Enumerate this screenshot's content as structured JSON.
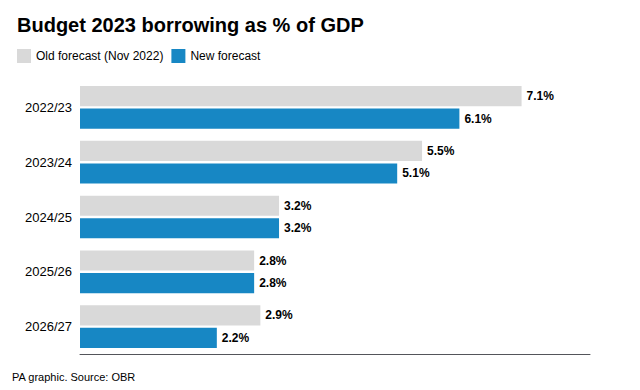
{
  "chart_data": {
    "type": "bar",
    "orientation": "horizontal",
    "title": "Budget 2023 borrowing as % of GDP",
    "annotations": [
      "PA graphic. Source: OBR"
    ],
    "categories": [
      "2022/23",
      "2023/24",
      "2024/25",
      "2025/26",
      "2026/27"
    ],
    "series": [
      {
        "name": "Old forecast (Nov 2022)",
        "color": "#d9d9d9",
        "values": [
          7.1,
          5.5,
          3.2,
          2.8,
          2.9
        ],
        "value_labels": [
          "7.1%",
          "5.5%",
          "3.2%",
          "2.8%",
          "2.9%"
        ]
      },
      {
        "name": "New forecast",
        "color": "#1787c4",
        "values": [
          6.1,
          5.1,
          3.2,
          2.8,
          2.2
        ],
        "value_labels": [
          "6.1%",
          "5.1%",
          "3.2%",
          "2.8%",
          "2.2%"
        ]
      }
    ],
    "xlim": [
      0,
      8.2
    ],
    "xticks": [],
    "grid": false,
    "legend": "upper left",
    "data_labels": true,
    "tick_labels": "y"
  }
}
